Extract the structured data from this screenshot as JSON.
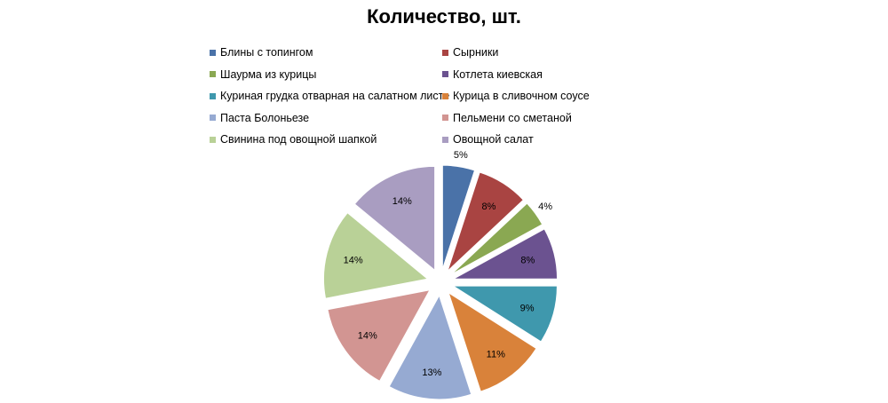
{
  "chart_data": {
    "type": "pie",
    "title": "Количество, шт.",
    "legend_position": "top",
    "exploded": true,
    "categories": [
      "Блины с топингом",
      "Сырники",
      "Шаурма из курицы",
      "Котлета киевская",
      "Куриная грудка отварная на салатном листе",
      "Курица в сливочном соусе",
      "Паста Болоньезе",
      "Пельмени  со сметаной",
      "Свинина  под овощной шапкой",
      "Овощной салат"
    ],
    "values": [
      5,
      8,
      4,
      8,
      9,
      11,
      13,
      14,
      14,
      14
    ],
    "labels": [
      "5%",
      "8%",
      "4%",
      "8%",
      "9%",
      "11%",
      "13%",
      "14%",
      "14%",
      "14%"
    ],
    "colors": [
      "#4a72a8",
      "#a94442",
      "#8aa852",
      "#6b5290",
      "#3f98ad",
      "#d9823a",
      "#96aad2",
      "#d29592",
      "#b9d197",
      "#a99dc1"
    ]
  }
}
